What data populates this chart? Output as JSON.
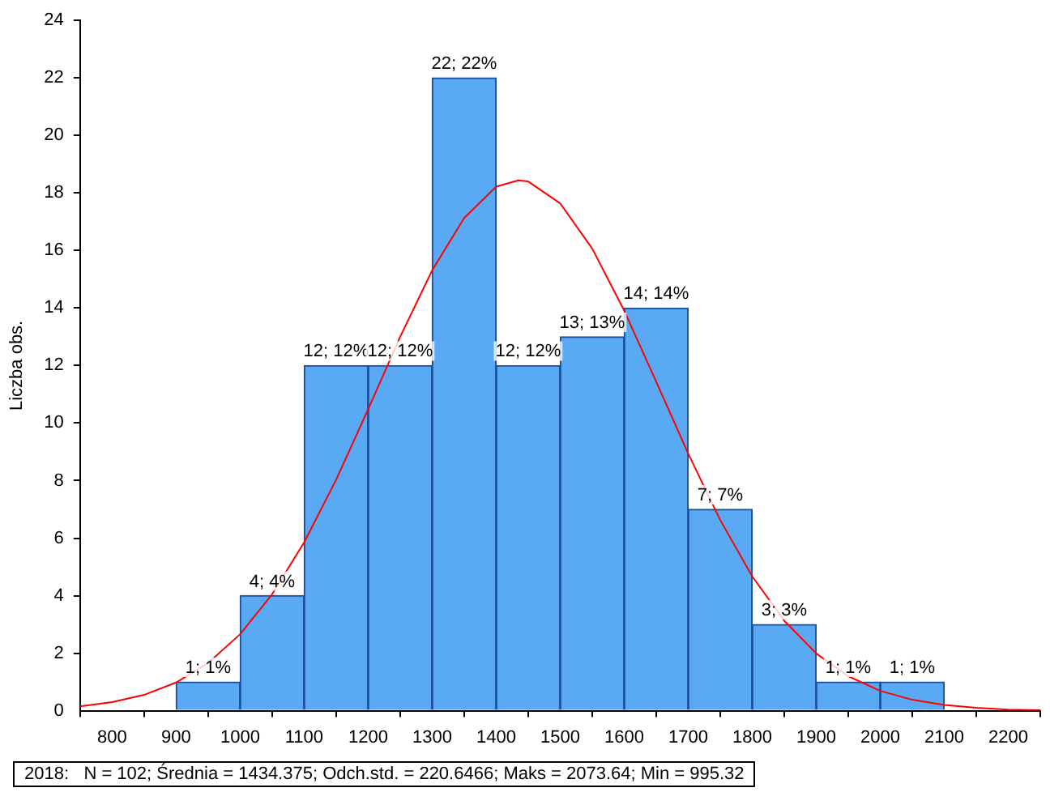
{
  "chart_data": {
    "type": "histogram",
    "ylabel": "Liczba obs.",
    "bins": [
      900,
      1000,
      1100,
      1200,
      1300,
      1400,
      1500,
      1600,
      1700,
      1800,
      1900,
      2000,
      2100
    ],
    "values": [
      1,
      4,
      12,
      12,
      22,
      12,
      13,
      14,
      7,
      3,
      1,
      1
    ],
    "value_labels": [
      "1; 1%",
      "4; 4%",
      "12; 12%",
      "12; 12%",
      "22; 22%",
      "12; 12%",
      "13; 13%",
      "14; 14%",
      "7; 7%",
      "3; 3%",
      "1; 1%",
      "1; 1%"
    ],
    "color": "#5aa9f5",
    "series": [
      {
        "type": "line",
        "color": "#ff0000",
        "x": [
          750,
          800,
          850,
          900,
          950,
          1000,
          1050,
          1100,
          1150,
          1200,
          1250,
          1300,
          1350,
          1400,
          1434.375,
          1450,
          1500,
          1550,
          1600,
          1650,
          1700,
          1750,
          1800,
          1850,
          1900,
          1950,
          2000,
          2050,
          2100,
          2150,
          2200,
          2250
        ],
        "values": [
          0.15,
          0.3,
          0.55,
          0.98,
          1.66,
          2.66,
          4.05,
          5.85,
          8.03,
          10.48,
          13.0,
          15.31,
          17.13,
          18.22,
          18.44,
          18.4,
          17.64,
          16.07,
          13.91,
          11.44,
          8.94,
          6.63,
          4.67,
          3.13,
          1.99,
          1.2,
          0.69,
          0.38,
          0.2,
          0.1,
          0.04,
          0.02
        ]
      }
    ],
    "xlim": [
      750,
      2250
    ],
    "xticks": [
      800,
      900,
      1000,
      1100,
      1200,
      1300,
      1400,
      1500,
      1600,
      1700,
      1800,
      1900,
      2000,
      2100,
      2200
    ],
    "ylim": [
      0,
      24
    ],
    "yticks": [
      0,
      2,
      4,
      6,
      8,
      10,
      12,
      14,
      16,
      18,
      20,
      22,
      24
    ],
    "annotations": [
      "2018:   N = 102; Średnia = 1434.375; Odch.std. = 220.6466; Maks = 2073.64; Min = 995.32"
    ],
    "legend": false,
    "grid": false,
    "marker": "none"
  }
}
